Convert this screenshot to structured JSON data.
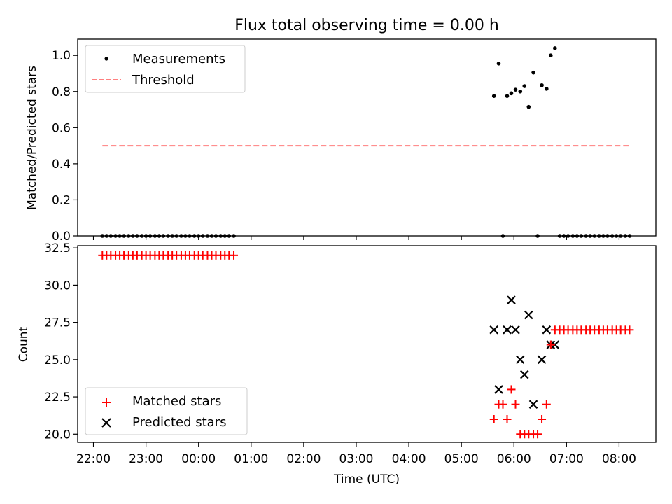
{
  "chart_data": [
    {
      "type": "scatter",
      "title": "Flux total observing time = 0.00 h",
      "xlabel": "",
      "ylabel": "Matched/Predicted stars",
      "xlim": [
        21.7,
        32.7
      ],
      "ylim": [
        0.0,
        1.09
      ],
      "yticks": [
        0.0,
        0.2,
        0.4,
        0.6,
        0.8,
        1.0
      ],
      "yticklabels": [
        "0.0",
        "0.2",
        "0.4",
        "0.6",
        "0.8",
        "1.0"
      ],
      "grid": false,
      "legend": "top-left",
      "series": [
        {
          "name": "Measurements",
          "style": "dot",
          "color": "#000000",
          "x": [
            22.17,
            22.25,
            22.33,
            22.42,
            22.5,
            22.58,
            22.67,
            22.75,
            22.83,
            22.92,
            23.0,
            23.08,
            23.17,
            23.25,
            23.33,
            23.42,
            23.5,
            23.58,
            23.67,
            23.75,
            23.83,
            23.92,
            24.0,
            24.08,
            24.17,
            24.25,
            24.33,
            24.42,
            24.5,
            24.58,
            24.67,
            29.62,
            29.71,
            29.79,
            29.87,
            29.95,
            30.03,
            30.12,
            30.2,
            30.28,
            30.37,
            30.45,
            30.53,
            30.62,
            30.7,
            30.78,
            30.87,
            30.95,
            31.03,
            31.12,
            31.2,
            31.28,
            31.37,
            31.45,
            31.53,
            31.62,
            31.7,
            31.78,
            31.87,
            31.95,
            32.03,
            32.12,
            32.2
          ],
          "y": [
            0,
            0,
            0,
            0,
            0,
            0,
            0,
            0,
            0,
            0,
            0,
            0,
            0,
            0,
            0,
            0,
            0,
            0,
            0,
            0,
            0,
            0,
            0,
            0,
            0,
            0,
            0,
            0,
            0,
            0,
            0,
            0.775,
            0.955,
            0,
            0.775,
            0.79,
            0.81,
            0.8,
            0.83,
            0.715,
            0.905,
            0,
            0.835,
            0.815,
            1.0,
            1.04,
            0,
            0,
            0,
            0,
            0,
            0,
            0,
            0,
            0,
            0,
            0,
            0,
            0,
            0,
            0,
            0,
            0
          ]
        },
        {
          "name": "Threshold",
          "style": "dashed-line",
          "color": "#ff7f7f",
          "x": [
            22.17,
            32.2
          ],
          "y": [
            0.5,
            0.5
          ]
        }
      ]
    },
    {
      "type": "scatter",
      "title": "",
      "xlabel": "Time (UTC)",
      "ylabel": "Count",
      "xlim": [
        21.7,
        32.7
      ],
      "ylim": [
        19.45,
        32.65
      ],
      "yticks": [
        20.0,
        22.5,
        25.0,
        27.5,
        30.0,
        32.5
      ],
      "yticklabels": [
        "20.0",
        "22.5",
        "25.0",
        "27.5",
        "30.0",
        "32.5"
      ],
      "xticks": [
        22,
        23,
        24,
        25,
        26,
        27,
        28,
        29,
        30,
        31,
        32
      ],
      "xticklabels": [
        "22:00",
        "23:00",
        "00:00",
        "01:00",
        "02:00",
        "03:00",
        "04:00",
        "05:00",
        "06:00",
        "07:00",
        "08:00"
      ],
      "grid": false,
      "legend": "bottom-left",
      "series": [
        {
          "name": "Matched stars",
          "style": "plus",
          "color": "#ff0000",
          "x": [
            22.17,
            22.25,
            22.33,
            22.42,
            22.5,
            22.58,
            22.67,
            22.75,
            22.83,
            22.92,
            23.0,
            23.08,
            23.17,
            23.25,
            23.33,
            23.42,
            23.5,
            23.58,
            23.67,
            23.75,
            23.83,
            23.92,
            24.0,
            24.08,
            24.17,
            24.25,
            24.33,
            24.42,
            24.5,
            24.58,
            24.67,
            29.62,
            29.71,
            29.79,
            29.87,
            29.95,
            30.03,
            30.12,
            30.2,
            30.28,
            30.37,
            30.45,
            30.53,
            30.62,
            30.7,
            30.78,
            30.87,
            30.95,
            31.03,
            31.12,
            31.2,
            31.28,
            31.37,
            31.45,
            31.53,
            31.62,
            31.7,
            31.78,
            31.87,
            31.95,
            32.03,
            32.12,
            32.2
          ],
          "y": [
            32,
            32,
            32,
            32,
            32,
            32,
            32,
            32,
            32,
            32,
            32,
            32,
            32,
            32,
            32,
            32,
            32,
            32,
            32,
            32,
            32,
            32,
            32,
            32,
            32,
            32,
            32,
            32,
            32,
            32,
            32,
            21,
            22,
            22,
            21,
            23,
            22,
            20,
            20,
            20,
            20,
            20,
            21,
            22,
            26,
            27,
            27,
            27,
            27,
            27,
            27,
            27,
            27,
            27,
            27,
            27,
            27,
            27,
            27,
            27,
            27,
            27,
            27
          ]
        },
        {
          "name": "Predicted stars",
          "style": "x",
          "color": "#000000",
          "x": [
            29.62,
            29.71,
            29.87,
            29.95,
            30.03,
            30.12,
            30.2,
            30.28,
            30.37,
            30.53,
            30.62,
            30.7,
            30.78
          ],
          "y": [
            27,
            23,
            27,
            29,
            27,
            25,
            24,
            28,
            22,
            25,
            27,
            26,
            26
          ]
        }
      ]
    }
  ]
}
